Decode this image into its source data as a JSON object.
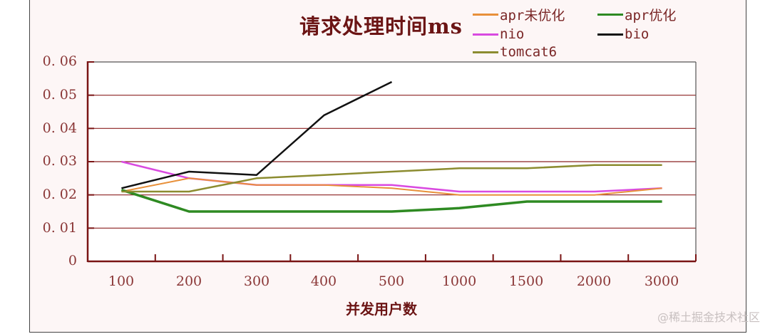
{
  "chart_data": {
    "type": "line",
    "title": "请求处理时间ms",
    "xlabel": "并发用户数",
    "ylabel": "",
    "categories": [
      "100",
      "200",
      "300",
      "400",
      "500",
      "1000",
      "1500",
      "2000",
      "3000"
    ],
    "yticks": [
      "0",
      "0.01",
      "0.02",
      "0.03",
      "0.04",
      "0.05",
      "0.06"
    ],
    "ylim": [
      0,
      0.06
    ],
    "grid": true,
    "legend_position": "top-right",
    "series": [
      {
        "name": "apr未优化",
        "color": "#e8903a",
        "width": 2,
        "values": [
          0.021,
          0.025,
          0.023,
          0.023,
          0.022,
          0.02,
          0.02,
          0.02,
          0.022
        ]
      },
      {
        "name": "apr优化",
        "color": "#2e8a22",
        "width": 3.5,
        "values": [
          0.0215,
          0.015,
          0.015,
          0.015,
          0.015,
          0.016,
          0.018,
          0.018,
          0.018
        ]
      },
      {
        "name": "nio",
        "color": "#d94ae0",
        "width": 2.5,
        "values": [
          0.03,
          0.025,
          0.023,
          0.023,
          0.023,
          0.021,
          0.021,
          0.021,
          0.022
        ]
      },
      {
        "name": "bio",
        "color": "#111111",
        "width": 2.5,
        "values": [
          0.022,
          0.027,
          0.026,
          0.044,
          0.054,
          null,
          null,
          null,
          null
        ]
      },
      {
        "name": "tomcat6",
        "color": "#8c8c30",
        "width": 2.5,
        "values": [
          0.021,
          0.021,
          0.025,
          0.026,
          0.027,
          0.028,
          0.028,
          0.029,
          0.029
        ]
      }
    ]
  },
  "watermark": "@稀土掘金技术社区",
  "colors": {
    "axis": "#7a1414",
    "grid": "#8b2020",
    "background": "#fdf6f6",
    "plot_background": "#ffffff"
  }
}
